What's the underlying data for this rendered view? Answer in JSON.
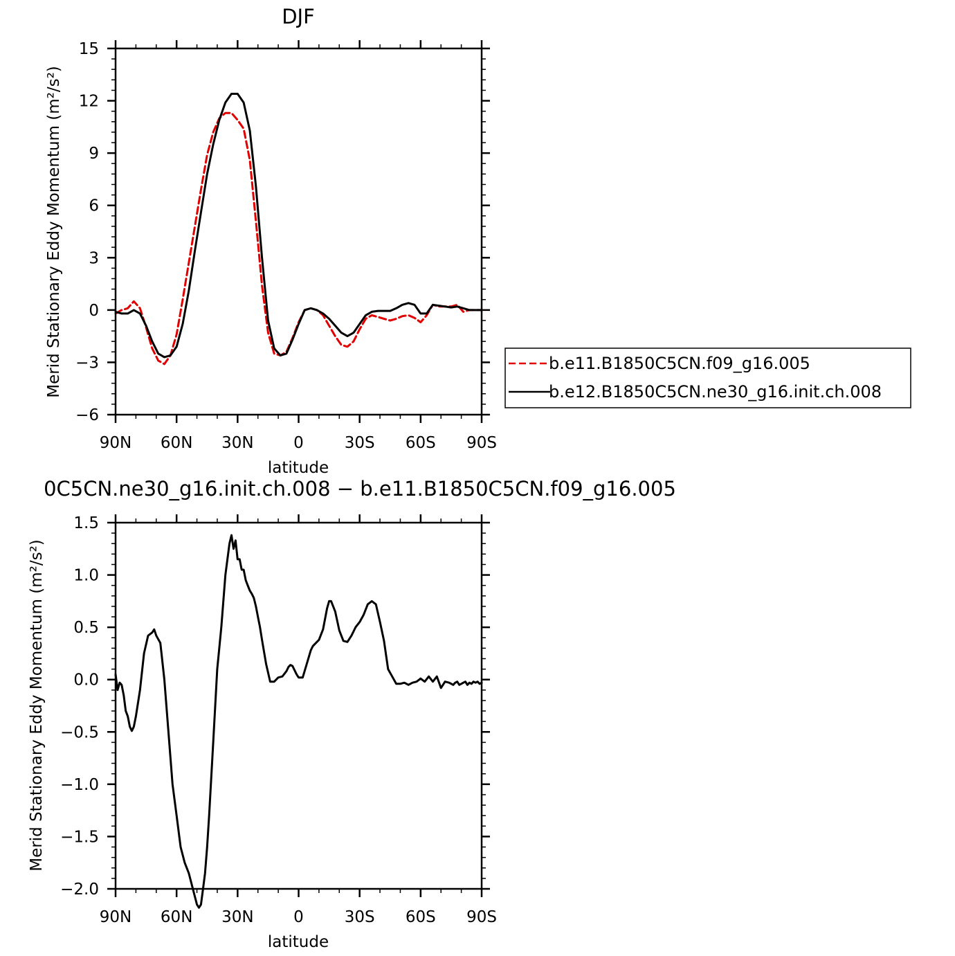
{
  "chart_data": [
    {
      "type": "line",
      "title": "DJF",
      "xlabel": "latitude",
      "ylabel": "Merid Stationary Eddy Momentum (m²/s²)",
      "xlim": [
        90,
        -90
      ],
      "ylim": [
        -6,
        15
      ],
      "x_ticks": [
        90,
        60,
        30,
        0,
        -30,
        -60,
        -90
      ],
      "x_tick_labels": [
        "90N",
        "60N",
        "30N",
        "0",
        "30S",
        "60S",
        "90S"
      ],
      "y_ticks": [
        -6,
        -3,
        0,
        3,
        6,
        9,
        12,
        15
      ],
      "y_tick_labels": [
        "−6",
        "−3",
        "0",
        "3",
        "6",
        "9",
        "12",
        "15"
      ],
      "legend_position": "right",
      "series": [
        {
          "name": "b.e11.B1850C5CN.f09_g16.005",
          "color": "#e00000",
          "dash": "dashed",
          "x": [
            90,
            87,
            84,
            81,
            78,
            75,
            72,
            69,
            66,
            63,
            60,
            57,
            54,
            51,
            48,
            45,
            42,
            39,
            36,
            33,
            30,
            27,
            24,
            21,
            18,
            15,
            12,
            9,
            6,
            3,
            0,
            -3,
            -6,
            -9,
            -12,
            -15,
            -18,
            -21,
            -24,
            -27,
            -30,
            -33,
            -36,
            -39,
            -42,
            -45,
            -48,
            -51,
            -54,
            -57,
            -60,
            -63,
            -66,
            -69,
            -72,
            -75,
            -78,
            -81,
            -84,
            -87,
            -90
          ],
          "y": [
            -0.2,
            0.0,
            0.1,
            0.5,
            0.1,
            -1.0,
            -2.2,
            -2.9,
            -3.1,
            -2.6,
            -1.4,
            0.6,
            2.7,
            4.8,
            6.9,
            8.9,
            10.2,
            11.0,
            11.3,
            11.3,
            10.9,
            10.4,
            8.6,
            5.1,
            1.4,
            -1.3,
            -2.5,
            -2.6,
            -2.4,
            -1.6,
            -0.7,
            0.0,
            0.1,
            0.0,
            -0.3,
            -0.9,
            -1.5,
            -2.0,
            -2.1,
            -1.8,
            -1.1,
            -0.5,
            -0.3,
            -0.4,
            -0.5,
            -0.6,
            -0.5,
            -0.35,
            -0.3,
            -0.45,
            -0.7,
            -0.3,
            0.3,
            0.2,
            0.2,
            0.2,
            0.3,
            -0.1,
            0.0,
            0.0,
            0.0
          ]
        },
        {
          "name": "b.e12.B1850C5CN.ne30_g16.init.ch.008",
          "color": "#000000",
          "dash": "solid",
          "x": [
            90,
            87,
            84,
            81,
            78,
            75,
            72,
            69,
            66,
            63,
            60,
            57,
            54,
            51,
            48,
            45,
            42,
            39,
            36,
            33,
            30,
            27,
            24,
            21,
            18,
            15,
            12,
            9,
            6,
            3,
            0,
            -3,
            -6,
            -9,
            -12,
            -15,
            -18,
            -21,
            -24,
            -27,
            -30,
            -33,
            -36,
            -39,
            -42,
            -45,
            -48,
            -51,
            -54,
            -57,
            -60,
            -63,
            -66,
            -69,
            -72,
            -75,
            -78,
            -81,
            -84,
            -87,
            -90
          ],
          "y": [
            -0.1,
            -0.2,
            -0.2,
            0.0,
            -0.2,
            -0.9,
            -1.8,
            -2.5,
            -2.7,
            -2.6,
            -2.1,
            -0.8,
            1.1,
            3.4,
            5.6,
            7.8,
            9.5,
            10.9,
            11.9,
            12.4,
            12.4,
            11.9,
            10.3,
            7.1,
            3.0,
            -0.6,
            -2.2,
            -2.6,
            -2.5,
            -1.7,
            -0.8,
            0.0,
            0.1,
            0.0,
            -0.2,
            -0.5,
            -0.9,
            -1.3,
            -1.5,
            -1.3,
            -0.8,
            -0.3,
            -0.1,
            -0.05,
            -0.05,
            -0.05,
            0.1,
            0.3,
            0.4,
            0.3,
            -0.2,
            -0.2,
            0.3,
            0.25,
            0.2,
            0.15,
            0.2,
            0.1,
            0.0,
            0.0,
            0.0
          ]
        }
      ]
    },
    {
      "type": "line",
      "title": "0C5CN.ne30_g16.init.ch.008 − b.e11.B1850C5CN.f09_g16.005",
      "xlabel": "latitude",
      "ylabel": "Merid Stationary Eddy Momentum (m²/s²)",
      "xlim": [
        90,
        -90
      ],
      "ylim": [
        -2.0,
        1.5
      ],
      "x_ticks": [
        90,
        60,
        30,
        0,
        -30,
        -60,
        -90
      ],
      "x_tick_labels": [
        "90N",
        "60N",
        "30N",
        "0",
        "30S",
        "60S",
        "90S"
      ],
      "y_ticks": [
        -2.0,
        -1.5,
        -1.0,
        -0.5,
        0.0,
        0.5,
        1.0,
        1.5
      ],
      "y_tick_labels": [
        "−2.0",
        "−1.5",
        "−1.0",
        "−0.5",
        "0.0",
        "0.5",
        "1.0",
        "1.5"
      ],
      "series": [
        {
          "color": "#000000",
          "dash": "solid",
          "x": [
            90,
            89,
            88,
            87,
            86,
            85,
            84,
            83,
            82,
            81,
            80,
            78,
            76,
            74,
            72,
            71,
            70,
            68,
            66,
            64,
            62,
            60,
            58,
            56,
            54,
            52,
            50,
            49,
            48,
            47,
            46,
            45,
            44,
            42,
            40,
            38,
            36,
            34,
            33,
            32,
            31,
            30,
            29,
            28,
            27,
            26,
            25,
            24,
            23,
            22,
            21,
            20,
            19,
            18,
            16,
            14,
            12,
            10,
            8,
            6,
            5,
            4,
            3,
            1,
            0,
            -2,
            -4,
            -6,
            -7,
            -8,
            -10,
            -12,
            -14,
            -15,
            -16,
            -18,
            -20,
            -22,
            -24,
            -26,
            -28,
            -30,
            -32,
            -34,
            -36,
            -38,
            -40,
            -42,
            -44,
            -46,
            -48,
            -50,
            -52,
            -54,
            -56,
            -58,
            -60,
            -62,
            -64,
            -66,
            -68,
            -70,
            -72,
            -74,
            -76,
            -77,
            -78,
            -79,
            -80,
            -81,
            -82,
            -83,
            -84,
            -85,
            -86,
            -87,
            -88,
            -89,
            -90
          ],
          "y": [
            0.05,
            -0.1,
            -0.03,
            -0.05,
            -0.15,
            -0.3,
            -0.35,
            -0.45,
            -0.49,
            -0.45,
            -0.35,
            -0.1,
            0.25,
            0.42,
            0.45,
            0.48,
            0.42,
            0.35,
            0.0,
            -0.5,
            -1.0,
            -1.3,
            -1.6,
            -1.75,
            -1.85,
            -2.0,
            -2.15,
            -2.18,
            -2.15,
            -2.0,
            -1.85,
            -1.6,
            -1.3,
            -0.6,
            0.1,
            0.5,
            1.0,
            1.3,
            1.38,
            1.25,
            1.33,
            1.15,
            1.15,
            1.05,
            1.05,
            0.95,
            0.9,
            0.85,
            0.82,
            0.78,
            0.7,
            0.6,
            0.5,
            0.38,
            0.15,
            -0.02,
            -0.02,
            0.02,
            0.03,
            0.08,
            0.12,
            0.14,
            0.13,
            0.05,
            0.02,
            0.02,
            0.15,
            0.28,
            0.32,
            0.34,
            0.38,
            0.48,
            0.68,
            0.75,
            0.75,
            0.65,
            0.47,
            0.37,
            0.36,
            0.42,
            0.5,
            0.55,
            0.62,
            0.72,
            0.75,
            0.72,
            0.55,
            0.37,
            0.1,
            0.03,
            -0.04,
            -0.04,
            -0.03,
            -0.05,
            -0.03,
            -0.02,
            0.01,
            -0.02,
            0.03,
            -0.02,
            0.03,
            -0.08,
            -0.02,
            -0.03,
            -0.05,
            -0.03,
            -0.02,
            -0.05,
            -0.04,
            -0.03,
            -0.02,
            -0.05,
            -0.03,
            -0.04,
            -0.02,
            -0.03,
            -0.02,
            -0.04,
            -0.03
          ]
        }
      ]
    }
  ]
}
